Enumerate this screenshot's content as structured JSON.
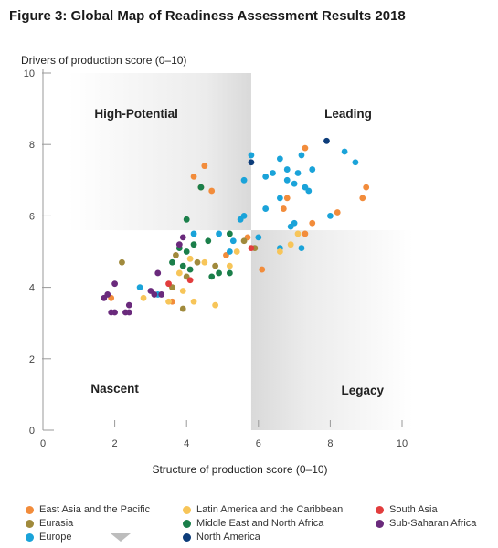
{
  "chart_data": {
    "type": "scatter",
    "title": "Figure 3: Global Map of Readiness Assessment Results 2018",
    "xlabel": "Structure of production score (0–10)",
    "ylabel": "Drivers of production score (0–10)",
    "xlim": [
      0,
      10
    ],
    "ylim": [
      0,
      10
    ],
    "x_ticks": [
      "0",
      "2",
      "4",
      "6",
      "8",
      "10"
    ],
    "y_ticks": [
      "0",
      "2",
      "4",
      "6",
      "8",
      "10"
    ],
    "quadrant_threshold": {
      "x": 5.8,
      "y": 5.6
    },
    "quadrant_labels": {
      "high_potential": "High-Potential",
      "leading": "Leading",
      "nascent": "Nascent",
      "legacy": "Legacy"
    },
    "legend_position": "bottom",
    "series": [
      {
        "name": "East Asia and the Pacific",
        "color": "#f28c3b",
        "points": [
          [
            4.2,
            7.1
          ],
          [
            4.5,
            7.4
          ],
          [
            4.4,
            6.8
          ],
          [
            4.7,
            6.7
          ],
          [
            1.9,
            3.7
          ],
          [
            3.6,
            3.6
          ],
          [
            5.1,
            4.9
          ],
          [
            5.7,
            5.4
          ],
          [
            6.1,
            4.5
          ],
          [
            6.7,
            6.2
          ],
          [
            6.8,
            6.5
          ],
          [
            7.3,
            5.5
          ],
          [
            7.5,
            5.8
          ],
          [
            7.3,
            7.9
          ],
          [
            8.2,
            6.1
          ],
          [
            8.9,
            6.5
          ],
          [
            9.0,
            6.8
          ]
        ]
      },
      {
        "name": "Eurasia",
        "color": "#a08a3c",
        "points": [
          [
            2.2,
            4.7
          ],
          [
            3.6,
            4.0
          ],
          [
            3.7,
            4.9
          ],
          [
            4.0,
            4.3
          ],
          [
            4.3,
            4.7
          ],
          [
            4.8,
            4.6
          ],
          [
            5.6,
            5.3
          ],
          [
            5.9,
            5.1
          ],
          [
            3.9,
            3.4
          ]
        ]
      },
      {
        "name": "Europe",
        "color": "#1aa3d9",
        "points": [
          [
            2.7,
            4.0
          ],
          [
            3.2,
            3.8
          ],
          [
            4.2,
            5.5
          ],
          [
            5.3,
            5.3
          ],
          [
            5.5,
            5.9
          ],
          [
            5.6,
            6.0
          ],
          [
            5.6,
            7.0
          ],
          [
            6.0,
            5.4
          ],
          [
            6.2,
            6.2
          ],
          [
            6.2,
            7.1
          ],
          [
            6.4,
            7.2
          ],
          [
            6.6,
            5.1
          ],
          [
            6.6,
            6.5
          ],
          [
            6.6,
            7.6
          ],
          [
            6.8,
            7.0
          ],
          [
            6.8,
            7.3
          ],
          [
            6.9,
            5.7
          ],
          [
            7.0,
            6.9
          ],
          [
            7.0,
            5.8
          ],
          [
            7.1,
            7.2
          ],
          [
            7.2,
            7.7
          ],
          [
            7.3,
            6.8
          ],
          [
            7.4,
            6.7
          ],
          [
            7.5,
            7.3
          ],
          [
            7.2,
            5.1
          ],
          [
            8.0,
            6.0
          ],
          [
            8.4,
            7.8
          ],
          [
            8.7,
            7.5
          ],
          [
            4.9,
            5.5
          ],
          [
            5.2,
            5.0
          ],
          [
            5.8,
            7.7
          ]
        ]
      },
      {
        "name": "Latin America and the Caribbean",
        "color": "#f7c559",
        "points": [
          [
            2.8,
            3.7
          ],
          [
            3.5,
            3.6
          ],
          [
            3.8,
            4.4
          ],
          [
            4.1,
            4.8
          ],
          [
            4.5,
            4.7
          ],
          [
            4.8,
            3.5
          ],
          [
            5.2,
            4.6
          ],
          [
            5.4,
            5.0
          ],
          [
            6.6,
            5.0
          ],
          [
            6.9,
            5.2
          ],
          [
            7.1,
            5.5
          ],
          [
            3.9,
            3.9
          ],
          [
            4.2,
            3.6
          ]
        ]
      },
      {
        "name": "Middle East and North Africa",
        "color": "#1b7f4a",
        "points": [
          [
            3.6,
            4.7
          ],
          [
            3.9,
            4.6
          ],
          [
            4.0,
            5.0
          ],
          [
            4.0,
            5.9
          ],
          [
            4.1,
            4.5
          ],
          [
            4.2,
            5.2
          ],
          [
            4.6,
            5.3
          ],
          [
            4.4,
            6.8
          ],
          [
            4.7,
            4.3
          ],
          [
            4.9,
            4.4
          ],
          [
            5.2,
            5.5
          ],
          [
            5.2,
            4.4
          ],
          [
            3.8,
            5.1
          ]
        ]
      },
      {
        "name": "North America",
        "color": "#0d3d7a",
        "points": [
          [
            5.8,
            7.5
          ],
          [
            7.9,
            8.1
          ]
        ]
      },
      {
        "name": "South Asia",
        "color": "#e23d3d",
        "points": [
          [
            4.1,
            4.2
          ],
          [
            5.8,
            5.1
          ],
          [
            3.5,
            4.1
          ]
        ]
      },
      {
        "name": "Sub-Saharan Africa",
        "color": "#6a2a7c",
        "points": [
          [
            1.7,
            3.7
          ],
          [
            1.9,
            3.3
          ],
          [
            2.0,
            3.3
          ],
          [
            2.0,
            4.1
          ],
          [
            2.3,
            3.3
          ],
          [
            2.4,
            3.3
          ],
          [
            2.4,
            3.5
          ],
          [
            3.0,
            3.9
          ],
          [
            3.2,
            4.4
          ],
          [
            3.3,
            3.8
          ],
          [
            3.8,
            5.2
          ],
          [
            3.9,
            5.4
          ],
          [
            1.8,
            3.8
          ],
          [
            3.1,
            3.8
          ]
        ]
      }
    ]
  }
}
